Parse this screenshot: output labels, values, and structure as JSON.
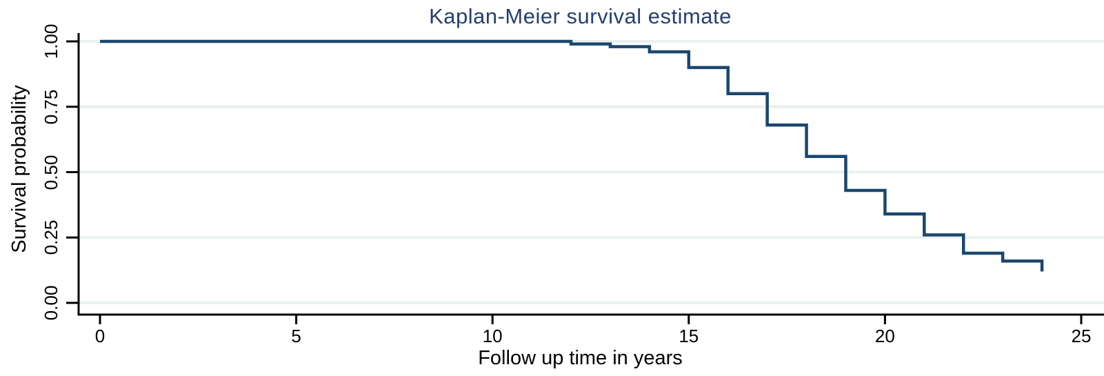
{
  "chart_data": {
    "type": "line",
    "subtype": "step-survival",
    "title": "Kaplan-Meier survival estimate",
    "xlabel": "Follow up time in years",
    "ylabel": "Survival probability",
    "xlim": [
      0,
      25
    ],
    "ylim": [
      0.0,
      1.0
    ],
    "xticks": [
      0,
      5,
      10,
      15,
      20,
      25
    ],
    "xtick_labels": [
      "0",
      "5",
      "10",
      "15",
      "20",
      "25"
    ],
    "yticks": [
      0.0,
      0.25,
      0.5,
      0.75,
      1.0
    ],
    "ytick_labels": [
      "0.00",
      "0.25",
      "0.50",
      "0.75",
      "1.00"
    ],
    "grid": "horizontal-gridlines-on",
    "legend": "none",
    "series": [
      {
        "name": "Kaplan-Meier survival estimate",
        "description": "Step function; survival probability after each event time, ending with terminal drop at t=24",
        "step_points": [
          [
            0,
            1.0
          ],
          [
            12,
            0.99
          ],
          [
            13,
            0.98
          ],
          [
            14,
            0.96
          ],
          [
            15,
            0.9
          ],
          [
            16,
            0.8
          ],
          [
            17,
            0.68
          ],
          [
            18,
            0.56
          ],
          [
            19,
            0.43
          ],
          [
            20,
            0.34
          ],
          [
            21,
            0.26
          ],
          [
            22,
            0.19
          ],
          [
            23,
            0.16
          ],
          [
            24,
            0.12
          ]
        ]
      }
    ],
    "colors": {
      "curve": "#1a476f",
      "title": "#26406e",
      "gridline": "#e9f1f0",
      "axis": "#000000",
      "background": "#ffffff"
    }
  }
}
